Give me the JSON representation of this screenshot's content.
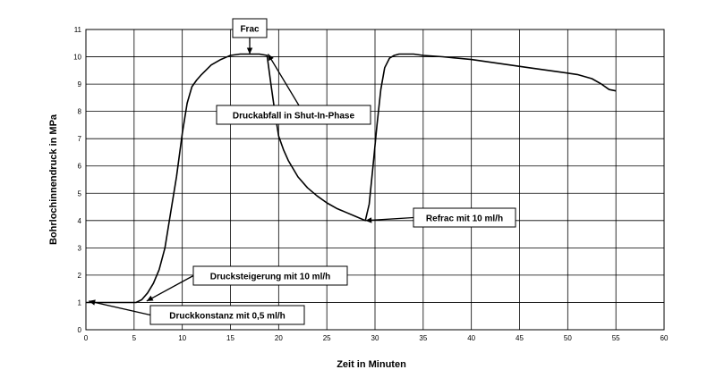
{
  "chart_data": {
    "type": "line",
    "title": "",
    "xlabel": "Zeit in Minuten",
    "ylabel": "Bohrlochinnendruck in MPa",
    "xlim": [
      0,
      60
    ],
    "ylim": [
      0,
      11
    ],
    "x_ticks": [
      0,
      5,
      10,
      15,
      20,
      25,
      30,
      35,
      40,
      45,
      50,
      55,
      60
    ],
    "y_ticks": [
      0,
      1,
      2,
      3,
      4,
      5,
      6,
      7,
      8,
      9,
      10,
      11
    ],
    "grid": true,
    "legend": "none",
    "series": [
      {
        "name": "Bohrlochinnendruck",
        "x": [
          0,
          5.2,
          5.8,
          6.4,
          7.0,
          7.6,
          8.2,
          8.8,
          9.4,
          10.0,
          10.5,
          11.0,
          11.5,
          12.0,
          13.0,
          14.0,
          15.0,
          16.0,
          17.0,
          18.0,
          18.8,
          19.2,
          19.6,
          20.0,
          20.5,
          21.0,
          22.0,
          23.0,
          24.0,
          25.0,
          26.0,
          27.0,
          28.0,
          29.0,
          29.4,
          29.8,
          30.2,
          30.6,
          31.0,
          31.5,
          32.0,
          32.5,
          33.0,
          34.0,
          35.0,
          37.0,
          40.0,
          43.0,
          46.0,
          49.0,
          51.0,
          52.5,
          53.5,
          54.3,
          55.0
        ],
        "y": [
          1.0,
          1.0,
          1.1,
          1.35,
          1.7,
          2.2,
          3.0,
          4.3,
          5.6,
          7.2,
          8.3,
          8.9,
          9.15,
          9.35,
          9.7,
          9.9,
          10.05,
          10.1,
          10.1,
          10.1,
          10.05,
          9.0,
          8.0,
          7.1,
          6.6,
          6.2,
          5.6,
          5.2,
          4.9,
          4.65,
          4.45,
          4.3,
          4.15,
          4.0,
          4.6,
          6.0,
          7.5,
          8.8,
          9.6,
          9.95,
          10.05,
          10.1,
          10.1,
          10.1,
          10.05,
          10.0,
          9.9,
          9.75,
          9.6,
          9.45,
          9.35,
          9.2,
          9.0,
          8.8,
          8.75
        ]
      }
    ],
    "annotations": [
      {
        "text": "Frac",
        "x": 17.0,
        "y": 10.1
      },
      {
        "text": "Druckabfall in Shut-In-Phase",
        "x": 18.9,
        "y": 10.1
      },
      {
        "text": "Refrac mit 10 ml/h",
        "x": 29.0,
        "y": 4.0
      },
      {
        "text": "Drucksteigerung mit 10 ml/h",
        "x": 6.3,
        "y": 1.05
      },
      {
        "text": "Druckkonstanz mit 0,5 ml/h",
        "x": 0.3,
        "y": 1.05
      }
    ]
  }
}
